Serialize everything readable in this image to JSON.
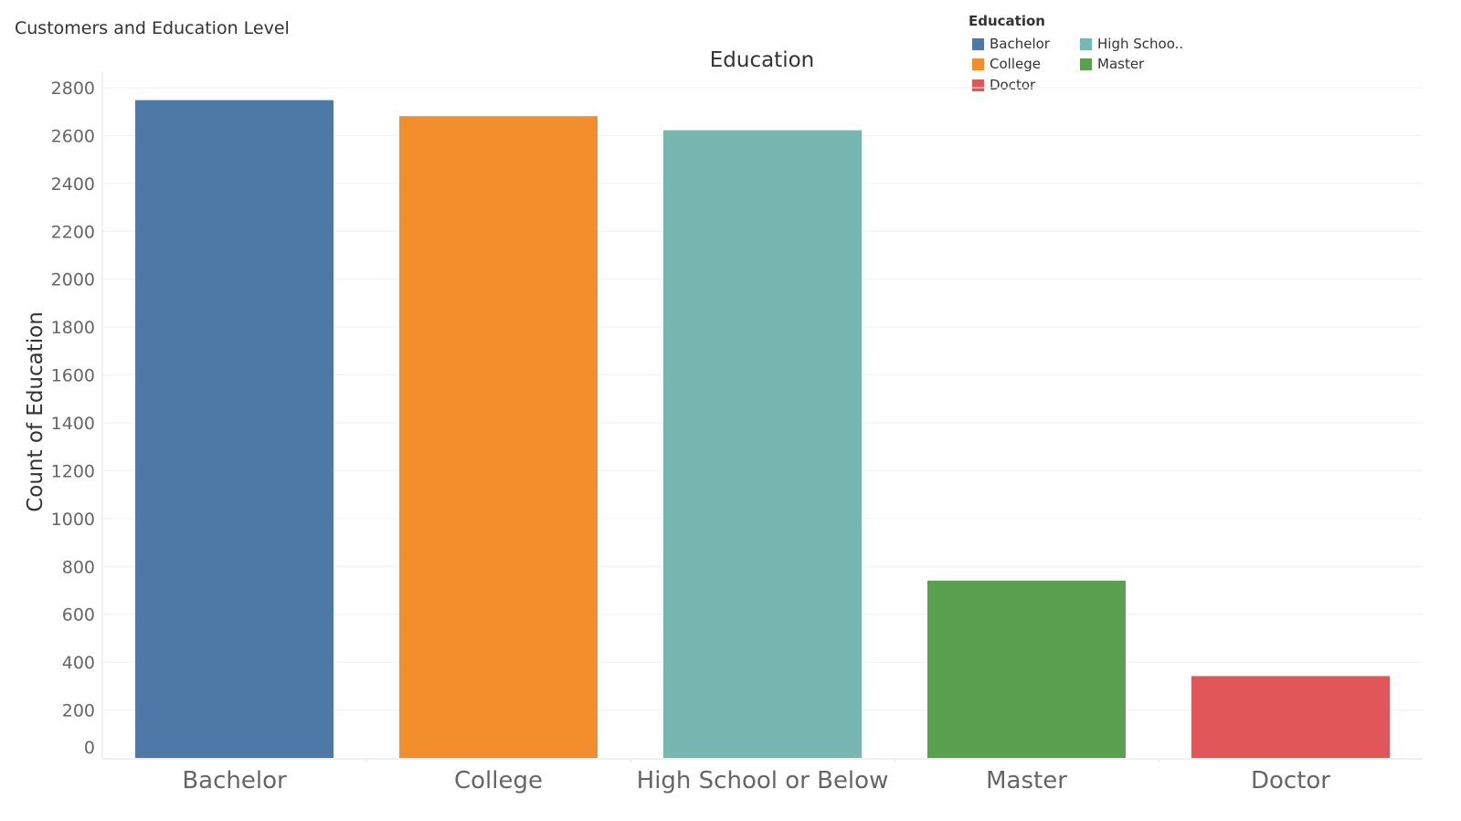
{
  "sheet_title": "Customers and Education Level",
  "legend": {
    "title": "Education",
    "items": [
      {
        "label": "Bachelor",
        "color": "#4e79a7"
      },
      {
        "label": "College",
        "color": "#f28e2b"
      },
      {
        "label": "Doctor",
        "color": "#e15759"
      },
      {
        "label": "High Schoo..",
        "color": "#76b7b2"
      },
      {
        "label": "Master",
        "color": "#59a14f"
      }
    ]
  },
  "chart_data": {
    "type": "bar",
    "title": "Education",
    "xlabel": "",
    "ylabel": "Count of Education",
    "categories": [
      "Bachelor",
      "College",
      "High School or Below",
      "Master",
      "Doctor"
    ],
    "values": [
      2748,
      2681,
      2622,
      741,
      342
    ],
    "colors": [
      "#4e79a7",
      "#f28e2b",
      "#76b7b2",
      "#59a14f",
      "#e15759"
    ],
    "ylim": [
      0,
      2800
    ],
    "yticks": [
      0,
      200,
      400,
      600,
      800,
      1000,
      1200,
      1400,
      1600,
      1800,
      2000,
      2200,
      2400,
      2600,
      2800
    ],
    "grid": true,
    "legend_position": "top-right"
  }
}
